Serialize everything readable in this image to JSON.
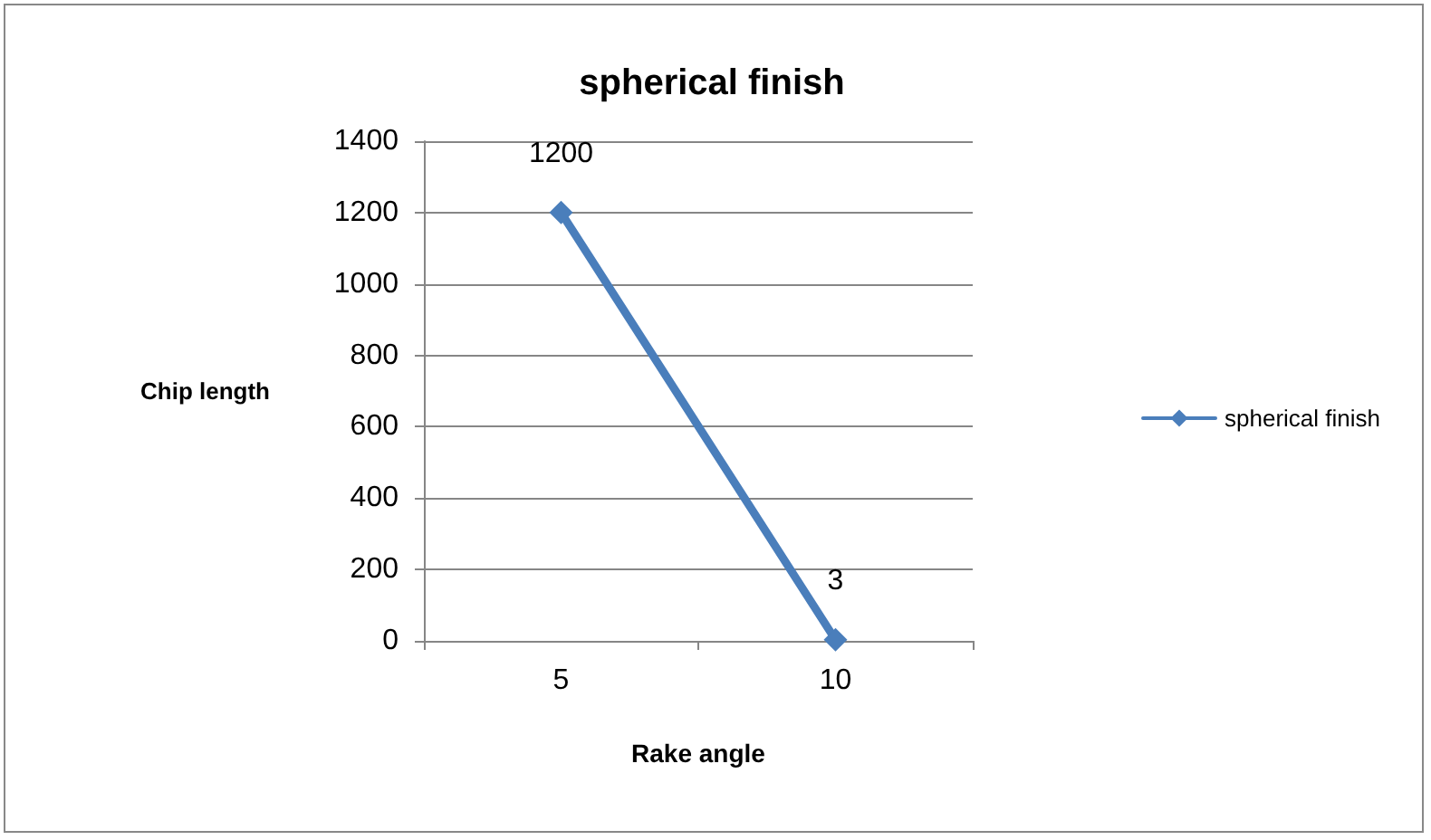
{
  "chart_data": {
    "type": "line",
    "title": "spherical finish",
    "xlabel": "Rake angle",
    "ylabel": "Chip length",
    "categories": [
      "5",
      "10"
    ],
    "series": [
      {
        "name": "spherical finish",
        "color": "#4a7ebb",
        "values": [
          1200,
          3
        ]
      }
    ],
    "ylim": [
      0,
      1400
    ],
    "yticks": [
      0,
      200,
      400,
      600,
      800,
      1000,
      1200,
      1400
    ],
    "grid": "y",
    "legend": "right",
    "marker": "diamond",
    "line_style": "solid",
    "data_labels": true
  }
}
